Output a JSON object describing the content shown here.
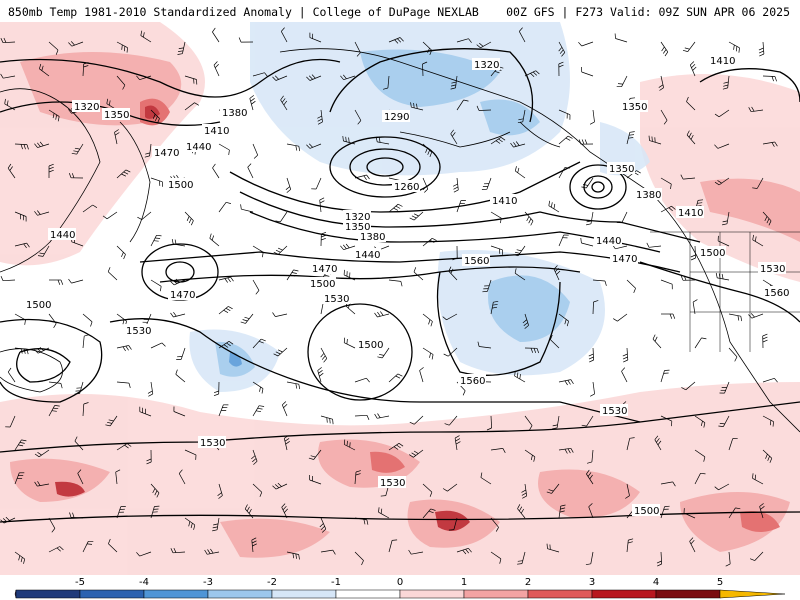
{
  "header": {
    "left": "850mb Temp 1981-2010 Standardized Anomaly | College of DuPage NEXLAB",
    "right": "00Z GFS | F273 Valid: 09Z SUN APR 06 2025"
  },
  "contour_labels": [
    "1320",
    "1350",
    "1380",
    "1410",
    "1440",
    "1470",
    "1500",
    "1530",
    "1560",
    "1290",
    "1260"
  ],
  "colorbar": {
    "ticks": [
      "-5",
      "-4",
      "-3",
      "-2",
      "-1",
      "0",
      "1",
      "2",
      "3",
      "4",
      "5"
    ],
    "colors": [
      "#6a3d9a",
      "#1f3a7a",
      "#2b62b0",
      "#4f95d6",
      "#9cc7ec",
      "#d6e6f7",
      "#ffffff",
      "#fbd7d7",
      "#f3a3a3",
      "#e05a5a",
      "#b8171f",
      "#7a0c10",
      "#f5b800"
    ]
  }
}
